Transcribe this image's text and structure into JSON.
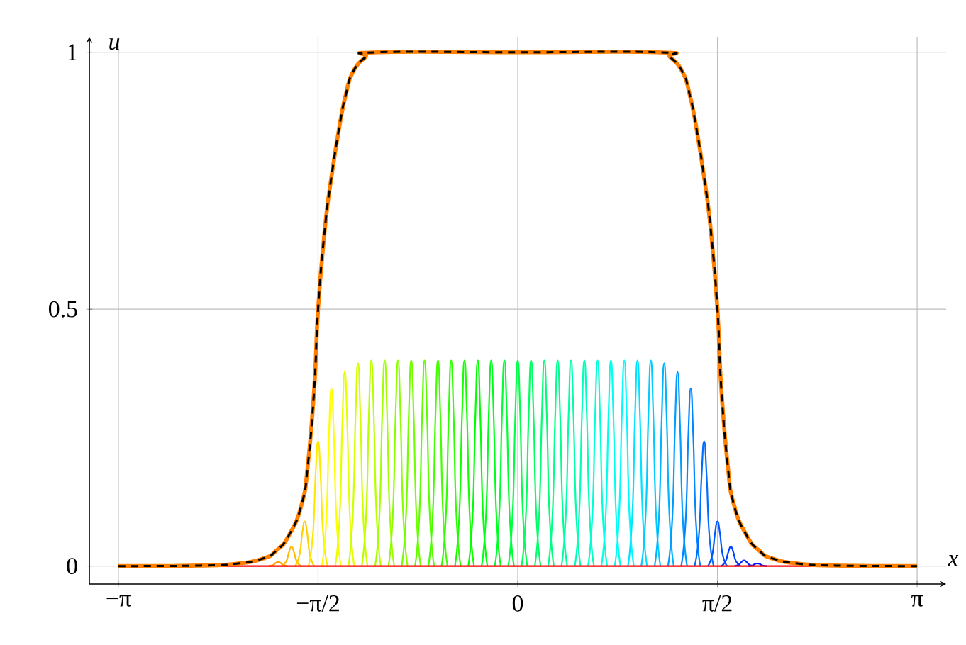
{
  "chart_data": {
    "type": "line",
    "xlabel": "x",
    "ylabel": "u",
    "xlim": [
      -3.37,
      3.37
    ],
    "ylim": [
      -0.035,
      1.03
    ],
    "xticks": [
      {
        "value": -3.14159,
        "label": "−π"
      },
      {
        "value": -1.5708,
        "label": "−π/2"
      },
      {
        "value": 0,
        "label": "0"
      },
      {
        "value": 1.5708,
        "label": "π/2"
      },
      {
        "value": 3.14159,
        "label": "π"
      }
    ],
    "yticks": [
      0,
      0.5,
      1
    ],
    "grid": true,
    "marker": "none",
    "series": [
      {
        "color": "#ffa200",
        "x": [
          -1.96,
          -1.925,
          -1.905,
          -1.885,
          -1.865,
          -1.845,
          -1.81
        ],
        "values": [
          0,
          0.002,
          0.006,
          0.008,
          0.006,
          0.002,
          0
        ]
      },
      {
        "color": "#ffb900",
        "x": [
          -1.855,
          -1.82,
          -1.8,
          -1.78,
          -1.76,
          -1.74,
          -1.705
        ],
        "values": [
          0,
          0.01,
          0.027,
          0.038,
          0.027,
          0.01,
          0
        ]
      },
      {
        "color": "#ffd000",
        "x": [
          -1.751,
          -1.716,
          -1.696,
          -1.676,
          -1.656,
          -1.636,
          -1.601
        ],
        "values": [
          0,
          0.023,
          0.063,
          0.087,
          0.063,
          0.023,
          0
        ]
      },
      {
        "color": "#ffe800",
        "x": [
          -1.646,
          -1.611,
          -1.591,
          -1.571,
          -1.551,
          -1.531,
          -1.496
        ],
        "values": [
          0,
          0.063,
          0.175,
          0.243,
          0.175,
          0.063,
          0
        ]
      },
      {
        "color": "#ffff00",
        "x": [
          -1.541,
          -1.506,
          -1.486,
          -1.466,
          -1.446,
          -1.426,
          -1.391
        ],
        "values": [
          0,
          0.09,
          0.249,
          0.346,
          0.249,
          0.09,
          0
        ]
      },
      {
        "color": "#e8ff00",
        "x": [
          -1.436,
          -1.401,
          -1.381,
          -1.361,
          -1.341,
          -1.321,
          -1.286
        ],
        "values": [
          0,
          0.098,
          0.272,
          0.378,
          0.272,
          0.098,
          0
        ]
      },
      {
        "color": "#d0ff00",
        "x": [
          -1.332,
          -1.297,
          -1.277,
          -1.257,
          -1.237,
          -1.217,
          -1.182
        ],
        "values": [
          0,
          0.103,
          0.284,
          0.395,
          0.284,
          0.103,
          0
        ]
      },
      {
        "color": "#b9ff00",
        "x": [
          -1.227,
          -1.192,
          -1.172,
          -1.152,
          -1.132,
          -1.112,
          -1.077
        ],
        "values": [
          0,
          0.104,
          0.288,
          0.4,
          0.288,
          0.104,
          0
        ]
      },
      {
        "color": "#a2ff00",
        "x": [
          -1.122,
          -1.087,
          -1.067,
          -1.047,
          -1.027,
          -1.007,
          -0.972
        ],
        "values": [
          0,
          0.104,
          0.288,
          0.4,
          0.288,
          0.104,
          0
        ]
      },
      {
        "color": "#8aff00",
        "x": [
          -1.017,
          -0.982,
          -0.962,
          -0.942,
          -0.922,
          -0.902,
          -0.867
        ],
        "values": [
          0,
          0.104,
          0.288,
          0.4,
          0.288,
          0.104,
          0
        ]
      },
      {
        "color": "#73ff00",
        "x": [
          -0.913,
          -0.878,
          -0.858,
          -0.838,
          -0.818,
          -0.798,
          -0.763
        ],
        "values": [
          0,
          0.104,
          0.288,
          0.4,
          0.288,
          0.104,
          0
        ]
      },
      {
        "color": "#5bff00",
        "x": [
          -0.808,
          -0.773,
          -0.753,
          -0.733,
          -0.713,
          -0.693,
          -0.658
        ],
        "values": [
          0,
          0.104,
          0.288,
          0.4,
          0.288,
          0.104,
          0
        ]
      },
      {
        "color": "#44ff00",
        "x": [
          -0.703,
          -0.668,
          -0.648,
          -0.628,
          -0.608,
          -0.588,
          -0.553
        ],
        "values": [
          0,
          0.104,
          0.288,
          0.4,
          0.288,
          0.104,
          0
        ]
      },
      {
        "color": "#2dff00",
        "x": [
          -0.599,
          -0.564,
          -0.544,
          -0.524,
          -0.504,
          -0.484,
          -0.449
        ],
        "values": [
          0,
          0.104,
          0.288,
          0.4,
          0.288,
          0.104,
          0
        ]
      },
      {
        "color": "#15ff00",
        "x": [
          -0.494,
          -0.459,
          -0.439,
          -0.419,
          -0.399,
          -0.379,
          -0.344
        ],
        "values": [
          0,
          0.104,
          0.288,
          0.4,
          0.288,
          0.104,
          0
        ]
      },
      {
        "color": "#00ff02",
        "x": [
          -0.389,
          -0.354,
          -0.334,
          -0.314,
          -0.294,
          -0.274,
          -0.239
        ],
        "values": [
          0,
          0.104,
          0.288,
          0.4,
          0.288,
          0.104,
          0
        ]
      },
      {
        "color": "#00ff1a",
        "x": [
          -0.284,
          -0.249,
          -0.229,
          -0.209,
          -0.189,
          -0.169,
          -0.134
        ],
        "values": [
          0,
          0.104,
          0.288,
          0.4,
          0.288,
          0.104,
          0
        ]
      },
      {
        "color": "#00ff31",
        "x": [
          -0.18,
          -0.145,
          -0.125,
          -0.105,
          -0.085,
          -0.065,
          -0.03
        ],
        "values": [
          0,
          0.104,
          0.288,
          0.4,
          0.288,
          0.104,
          0
        ]
      },
      {
        "color": "#00ff48",
        "x": [
          -0.075,
          -0.04,
          -0.02,
          0,
          0.02,
          0.04,
          0.075
        ],
        "values": [
          0,
          0.104,
          0.288,
          0.4,
          0.288,
          0.104,
          0
        ]
      },
      {
        "color": "#00ff60",
        "x": [
          0.03,
          0.065,
          0.085,
          0.105,
          0.125,
          0.145,
          0.18
        ],
        "values": [
          0,
          0.104,
          0.288,
          0.4,
          0.288,
          0.104,
          0
        ]
      },
      {
        "color": "#00ff77",
        "x": [
          0.134,
          0.169,
          0.189,
          0.209,
          0.229,
          0.249,
          0.284
        ],
        "values": [
          0,
          0.104,
          0.288,
          0.4,
          0.288,
          0.104,
          0
        ]
      },
      {
        "color": "#00ff8e",
        "x": [
          0.239,
          0.274,
          0.294,
          0.314,
          0.334,
          0.354,
          0.389
        ],
        "values": [
          0,
          0.104,
          0.288,
          0.4,
          0.288,
          0.104,
          0
        ]
      },
      {
        "color": "#00ffa6",
        "x": [
          0.344,
          0.379,
          0.399,
          0.419,
          0.439,
          0.459,
          0.494
        ],
        "values": [
          0,
          0.104,
          0.288,
          0.4,
          0.288,
          0.104,
          0
        ]
      },
      {
        "color": "#00ffbd",
        "x": [
          0.449,
          0.484,
          0.504,
          0.524,
          0.544,
          0.564,
          0.599
        ],
        "values": [
          0,
          0.104,
          0.288,
          0.4,
          0.288,
          0.104,
          0
        ]
      },
      {
        "color": "#00ffd4",
        "x": [
          0.553,
          0.588,
          0.608,
          0.628,
          0.648,
          0.668,
          0.703
        ],
        "values": [
          0,
          0.104,
          0.288,
          0.4,
          0.288,
          0.104,
          0
        ]
      },
      {
        "color": "#00ffec",
        "x": [
          0.658,
          0.693,
          0.713,
          0.733,
          0.753,
          0.773,
          0.808
        ],
        "values": [
          0,
          0.104,
          0.288,
          0.4,
          0.288,
          0.104,
          0
        ]
      },
      {
        "color": "#00fbff",
        "x": [
          0.763,
          0.798,
          0.818,
          0.838,
          0.858,
          0.878,
          0.913
        ],
        "values": [
          0,
          0.104,
          0.288,
          0.4,
          0.288,
          0.104,
          0
        ]
      },
      {
        "color": "#00e3ff",
        "x": [
          0.867,
          0.902,
          0.922,
          0.942,
          0.962,
          0.982,
          1.017
        ],
        "values": [
          0,
          0.104,
          0.288,
          0.4,
          0.288,
          0.104,
          0
        ]
      },
      {
        "color": "#00ccff",
        "x": [
          0.972,
          1.007,
          1.027,
          1.047,
          1.067,
          1.087,
          1.122
        ],
        "values": [
          0,
          0.104,
          0.288,
          0.4,
          0.288,
          0.104,
          0
        ]
      },
      {
        "color": "#00b5ff",
        "x": [
          1.077,
          1.112,
          1.132,
          1.152,
          1.172,
          1.192,
          1.227
        ],
        "values": [
          0,
          0.103,
          0.284,
          0.395,
          0.284,
          0.103,
          0
        ]
      },
      {
        "color": "#009dff",
        "x": [
          1.182,
          1.217,
          1.237,
          1.257,
          1.277,
          1.297,
          1.332
        ],
        "values": [
          0,
          0.098,
          0.272,
          0.378,
          0.272,
          0.098,
          0
        ]
      },
      {
        "color": "#0086ff",
        "x": [
          1.286,
          1.321,
          1.341,
          1.361,
          1.381,
          1.401,
          1.436
        ],
        "values": [
          0,
          0.09,
          0.249,
          0.346,
          0.249,
          0.09,
          0
        ]
      },
      {
        "color": "#006eff",
        "x": [
          1.391,
          1.426,
          1.446,
          1.466,
          1.486,
          1.506,
          1.541
        ],
        "values": [
          0,
          0.063,
          0.175,
          0.243,
          0.175,
          0.063,
          0
        ]
      },
      {
        "color": "#0057ff",
        "x": [
          1.496,
          1.531,
          1.551,
          1.571,
          1.591,
          1.611,
          1.646
        ],
        "values": [
          0,
          0.023,
          0.063,
          0.087,
          0.063,
          0.023,
          0
        ]
      },
      {
        "color": "#0040ff",
        "x": [
          1.601,
          1.636,
          1.656,
          1.676,
          1.696,
          1.716,
          1.751
        ],
        "values": [
          0,
          0.01,
          0.027,
          0.038,
          0.027,
          0.01,
          0
        ]
      },
      {
        "color": "#0028ff",
        "x": [
          1.705,
          1.74,
          1.76,
          1.78,
          1.8,
          1.82,
          1.855
        ],
        "values": [
          0,
          0.003,
          0.008,
          0.011,
          0.008,
          0.003,
          0
        ]
      },
      {
        "color": "#0011ff",
        "x": [
          1.81,
          1.845,
          1.865,
          1.885,
          1.905,
          1.925,
          1.96
        ],
        "values": [
          0,
          0.001,
          0.004,
          0.005,
          0.004,
          0.001,
          0
        ]
      },
      {
        "color": "#ff0000",
        "x": [
          -3.14159,
          3.14159
        ],
        "values": [
          0,
          0
        ]
      },
      {
        "color": "#ff8000",
        "line_style": "solid",
        "x": [
          -3.14159,
          -2.5,
          -2.2,
          -2.0,
          -1.9,
          -1.8,
          -1.7,
          -1.65,
          -1.6,
          -1.5708,
          -1.52,
          -1.47,
          -1.4,
          -1.35,
          -1.3,
          -1.2,
          -1.1,
          0,
          1.1,
          1.2,
          1.3,
          1.35,
          1.4,
          1.47,
          1.52,
          1.5708,
          1.6,
          1.65,
          1.7,
          1.8,
          1.9,
          2.0,
          2.2,
          2.5,
          3.14159
        ],
        "values": [
          0,
          0.001,
          0.005,
          0.015,
          0.03,
          0.06,
          0.12,
          0.2,
          0.35,
          0.5,
          0.65,
          0.75,
          0.86,
          0.92,
          0.96,
          0.99,
          1,
          1,
          1,
          0.99,
          0.96,
          0.92,
          0.86,
          0.75,
          0.65,
          0.5,
          0.35,
          0.2,
          0.12,
          0.06,
          0.03,
          0.015,
          0.005,
          0.001,
          0
        ]
      },
      {
        "color": "#000000",
        "line_style": "dashed",
        "x": [
          -3.14159,
          -2.5,
          -2.2,
          -2.0,
          -1.9,
          -1.8,
          -1.7,
          -1.65,
          -1.6,
          -1.5708,
          -1.52,
          -1.47,
          -1.4,
          -1.35,
          -1.3,
          -1.2,
          -1.1,
          0,
          1.1,
          1.2,
          1.3,
          1.35,
          1.4,
          1.47,
          1.52,
          1.5708,
          1.6,
          1.65,
          1.7,
          1.8,
          1.9,
          2.0,
          2.2,
          2.5,
          3.14159
        ],
        "values": [
          0,
          0.001,
          0.005,
          0.015,
          0.03,
          0.06,
          0.12,
          0.2,
          0.35,
          0.5,
          0.65,
          0.75,
          0.86,
          0.92,
          0.96,
          0.99,
          1,
          1,
          1,
          0.99,
          0.96,
          0.92,
          0.86,
          0.75,
          0.65,
          0.5,
          0.35,
          0.2,
          0.12,
          0.06,
          0.03,
          0.015,
          0.005,
          0.001,
          0
        ]
      }
    ]
  }
}
